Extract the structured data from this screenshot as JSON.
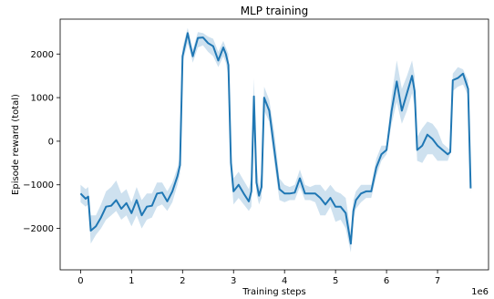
{
  "chart_data": {
    "type": "line",
    "title": "MLP training",
    "xlabel": "Training steps",
    "ylabel": "Episode reward (total)",
    "x_offset_label": "1e6",
    "xlim": [
      -0.4,
      8.0
    ],
    "ylim": [
      -2950,
      2800
    ],
    "x_ticks": [
      0,
      1,
      2,
      3,
      4,
      5,
      6,
      7
    ],
    "y_ticks": [
      -2000,
      -1000,
      0,
      1000,
      2000
    ],
    "grid": false,
    "legend": false,
    "colors": {
      "line": "#1f77b4",
      "band": "#1f77b4"
    },
    "series": [
      {
        "x": [
          0.0,
          0.1,
          0.15,
          0.2,
          0.3,
          0.4,
          0.5,
          0.6,
          0.7,
          0.8,
          0.9,
          1.0,
          1.1,
          1.2,
          1.3,
          1.4,
          1.5,
          1.6,
          1.7,
          1.8,
          1.9,
          1.95,
          2.0,
          2.1,
          2.15,
          2.2,
          2.3,
          2.4,
          2.5,
          2.6,
          2.7,
          2.8,
          2.85,
          2.9,
          2.95,
          3.0,
          3.1,
          3.2,
          3.3,
          3.35,
          3.4,
          3.45,
          3.5,
          3.55,
          3.6,
          3.7,
          3.8,
          3.9,
          4.0,
          4.1,
          4.2,
          4.3,
          4.4,
          4.5,
          4.6,
          4.7,
          4.8,
          4.9,
          5.0,
          5.1,
          5.2,
          5.3,
          5.35,
          5.4,
          5.5,
          5.6,
          5.7,
          5.8,
          5.9,
          6.0,
          6.1,
          6.2,
          6.3,
          6.4,
          6.5,
          6.55,
          6.6,
          6.7,
          6.8,
          6.9,
          7.0,
          7.1,
          7.2,
          7.25,
          7.3,
          7.4,
          7.5,
          7.6,
          7.65
        ],
        "y": [
          -1200,
          -1320,
          -1270,
          -2050,
          -1950,
          -1750,
          -1500,
          -1480,
          -1350,
          -1550,
          -1420,
          -1650,
          -1350,
          -1700,
          -1500,
          -1480,
          -1200,
          -1180,
          -1380,
          -1150,
          -800,
          -550,
          1950,
          2480,
          2200,
          1950,
          2370,
          2380,
          2250,
          2180,
          1850,
          2150,
          2000,
          1750,
          -500,
          -1150,
          -1000,
          -1200,
          -1380,
          -1150,
          1030,
          -950,
          -1250,
          -1050,
          1000,
          700,
          -200,
          -1100,
          -1200,
          -1200,
          -1180,
          -850,
          -1200,
          -1200,
          -1200,
          -1300,
          -1450,
          -1300,
          -1500,
          -1500,
          -1650,
          -2350,
          -1600,
          -1350,
          -1200,
          -1150,
          -1150,
          -600,
          -300,
          -200,
          700,
          1370,
          700,
          1100,
          1500,
          1150,
          -200,
          -100,
          150,
          50,
          -100,
          -200,
          -300,
          -250,
          1400,
          1450,
          1550,
          1200,
          -1080
        ],
        "lower": [
          -1400,
          -1500,
          -1450,
          -2350,
          -2150,
          -2000,
          -1800,
          -1700,
          -1600,
          -1800,
          -1700,
          -1950,
          -1700,
          -2000,
          -1800,
          -1750,
          -1500,
          -1450,
          -1600,
          -1400,
          -1000,
          -750,
          1800,
          2250,
          2050,
          1800,
          2150,
          2200,
          2050,
          1950,
          1700,
          1950,
          1800,
          1500,
          -700,
          -1450,
          -1300,
          -1450,
          -1600,
          -1500,
          500,
          -1200,
          -1450,
          -1300,
          700,
          450,
          -500,
          -1350,
          -1400,
          -1350,
          -1350,
          -1050,
          -1350,
          -1350,
          -1400,
          -1700,
          -1700,
          -1500,
          -1850,
          -1800,
          -2000,
          -2550,
          -1800,
          -1550,
          -1400,
          -1300,
          -1300,
          -800,
          -450,
          -300,
          400,
          900,
          400,
          700,
          1100,
          800,
          -450,
          -500,
          -300,
          -300,
          -450,
          -450,
          -450,
          -300,
          1150,
          1250,
          1300,
          1050,
          -1200
        ],
        "upper": [
          -1000,
          -1100,
          -1050,
          -1700,
          -1700,
          -1450,
          -1150,
          -1050,
          -900,
          -1200,
          -1100,
          -1400,
          -1050,
          -1350,
          -1200,
          -1200,
          -950,
          -950,
          -1150,
          -950,
          -600,
          -350,
          2150,
          2600,
          2350,
          2100,
          2500,
          2480,
          2400,
          2350,
          2050,
          2300,
          2150,
          2000,
          -250,
          -850,
          -700,
          -900,
          -1100,
          -800,
          1450,
          -500,
          -1050,
          -700,
          1250,
          950,
          200,
          -850,
          -1000,
          -1050,
          -1000,
          -650,
          -1000,
          -1050,
          -1000,
          -1000,
          -1150,
          -1000,
          -1150,
          -1200,
          -1300,
          -2100,
          -1350,
          -1150,
          -1000,
          -1000,
          -1000,
          -400,
          -100,
          -100,
          1050,
          1850,
          1200,
          1500,
          1850,
          1500,
          100,
          300,
          450,
          400,
          250,
          -50,
          -150,
          -200,
          1550,
          1700,
          1650,
          1400,
          -950
        ]
      }
    ]
  }
}
